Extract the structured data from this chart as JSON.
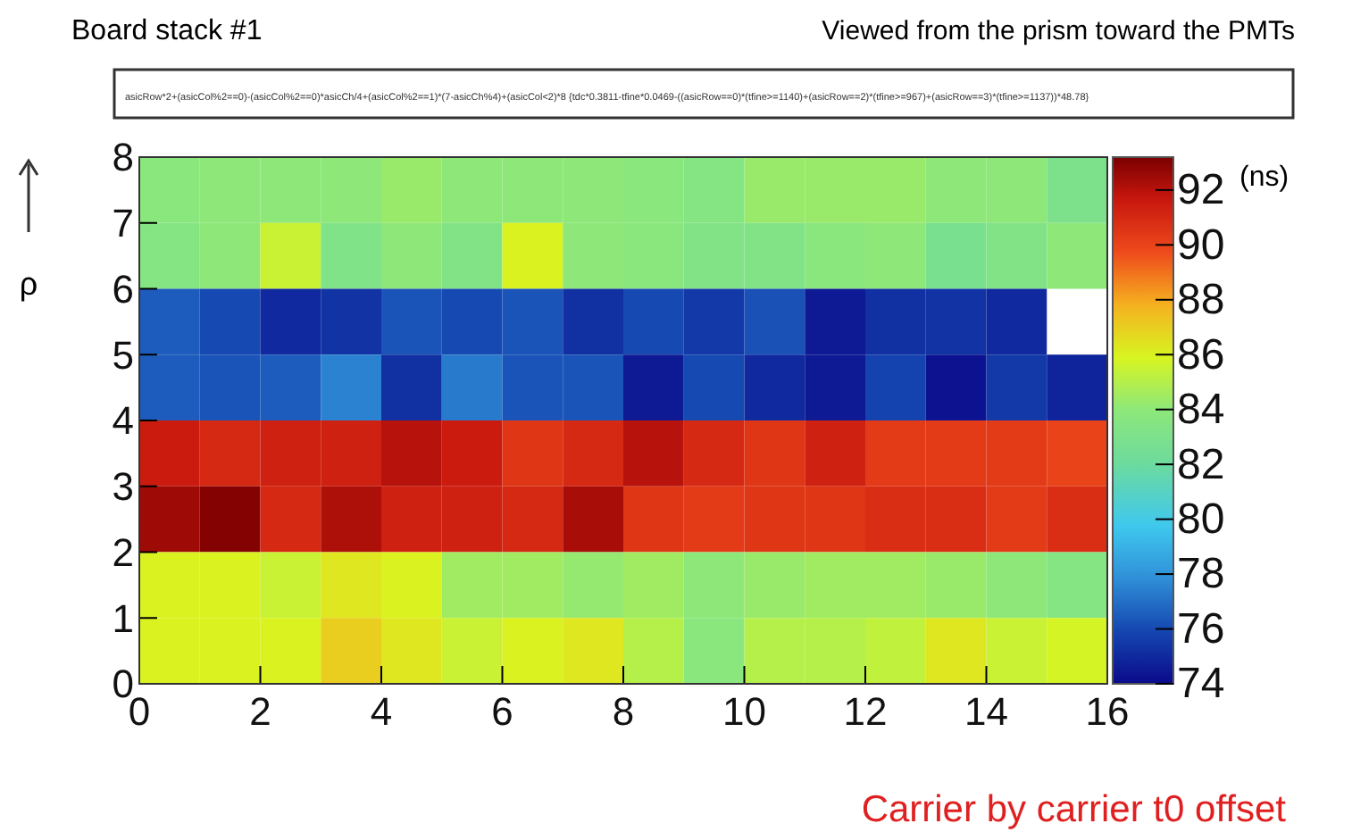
{
  "chart_data": {
    "type": "heatmap",
    "title": "Board stack #1",
    "subtitle": "Viewed from the prism toward the PMTs",
    "ylabel": "ρ",
    "clabel": "(ns)",
    "annotations": [
      "asicRow*2+(asicCol%2==0)-(asicCol%2==0)*asicCh/4+(asicCol%2==1)*(7-asicCh%4)+(asicCol<2)*8 {tdc*0.3811-tfine*0.0469-((asicRow==0)*(tfine>=1140)+(asicRow==2)*(tfine>=967)+(asicRow==3)*(tfine>=1137))*48.78}",
      "Carrier by carrier t0 offset"
    ],
    "xlim": [
      0,
      16
    ],
    "xticks": [
      0,
      2,
      4,
      6,
      8,
      10,
      12,
      14,
      16
    ],
    "ylim": [
      0,
      8
    ],
    "yticks": [
      0,
      1,
      2,
      3,
      4,
      5,
      6,
      7,
      8
    ],
    "clim": [
      74,
      93.2
    ],
    "cticks": [
      74,
      76,
      78,
      80,
      82,
      84,
      86,
      88,
      90,
      92
    ],
    "cells": [
      [
        83.8,
        84,
        84,
        84,
        84.3,
        84,
        84,
        84,
        83.8,
        83.5,
        84.3,
        84.3,
        84.3,
        84,
        84,
        83
      ],
      [
        83.5,
        84,
        85.5,
        83.2,
        84,
        83.3,
        86,
        84,
        83.8,
        83.3,
        83.3,
        83.8,
        84,
        82.8,
        83.3,
        84
      ],
      [
        76.5,
        76,
        75,
        75.3,
        76.3,
        76,
        76.3,
        75.2,
        76,
        75.5,
        76.2,
        74.5,
        75.2,
        75.3,
        75,
        null
      ],
      [
        76.5,
        76.3,
        76.5,
        77.5,
        75.2,
        77.3,
        76.3,
        76.3,
        74.5,
        76,
        75,
        74.5,
        75.8,
        74.3,
        75.5,
        74.8
      ],
      [
        91.5,
        91,
        91.3,
        91.3,
        92,
        91.5,
        90.5,
        91,
        92,
        91,
        90.5,
        91.3,
        90.3,
        90.3,
        90.3,
        90
      ],
      [
        92.5,
        93,
        91,
        92.2,
        91.3,
        91.3,
        91,
        92.3,
        90.5,
        90.3,
        90.5,
        90.5,
        90.8,
        90.8,
        90.3,
        90.8
      ],
      [
        86,
        86,
        85.5,
        86.3,
        86,
        84.5,
        84.5,
        84.2,
        84.5,
        84,
        84.3,
        84.5,
        84.5,
        84.3,
        84,
        83.5
      ],
      [
        86,
        86,
        86,
        87,
        86.3,
        85.5,
        86,
        86.3,
        85,
        83.8,
        85,
        85,
        85.3,
        86.3,
        85.5,
        85.8
      ]
    ]
  }
}
